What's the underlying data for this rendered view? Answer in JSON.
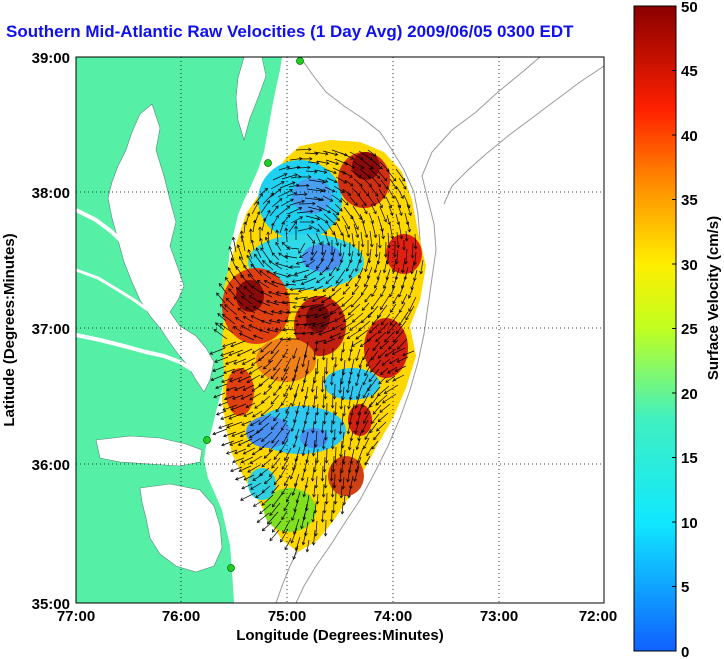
{
  "map": {
    "title": "Southern Mid-Atlantic Raw Velocities (1 Day Avg) 2009/06/05 0300 EDT",
    "x_axis_label": "Longitude (Degrees:Minutes)",
    "y_axis_label": "Latitude (Degrees:Minutes)",
    "x_ticks": [
      "77:00",
      "76:00",
      "75:00",
      "74:00",
      "73:00",
      "72:00"
    ],
    "y_ticks": [
      "39:00",
      "38:00",
      "37:00",
      "36:00",
      "35:00"
    ],
    "lon_range": [
      -77,
      -72
    ],
    "lat_range": [
      35,
      39
    ],
    "grid": "dotted"
  },
  "colorbar": {
    "label": "Surface Velocity (cm/s)",
    "ticks": [
      "50",
      "45",
      "40",
      "35",
      "30",
      "25",
      "20",
      "15",
      "10",
      "5",
      "0"
    ],
    "range": [
      0,
      50
    ]
  },
  "colors": {
    "land": "#55f0a6",
    "title": "#1010ee",
    "station": "#22cc22"
  }
}
